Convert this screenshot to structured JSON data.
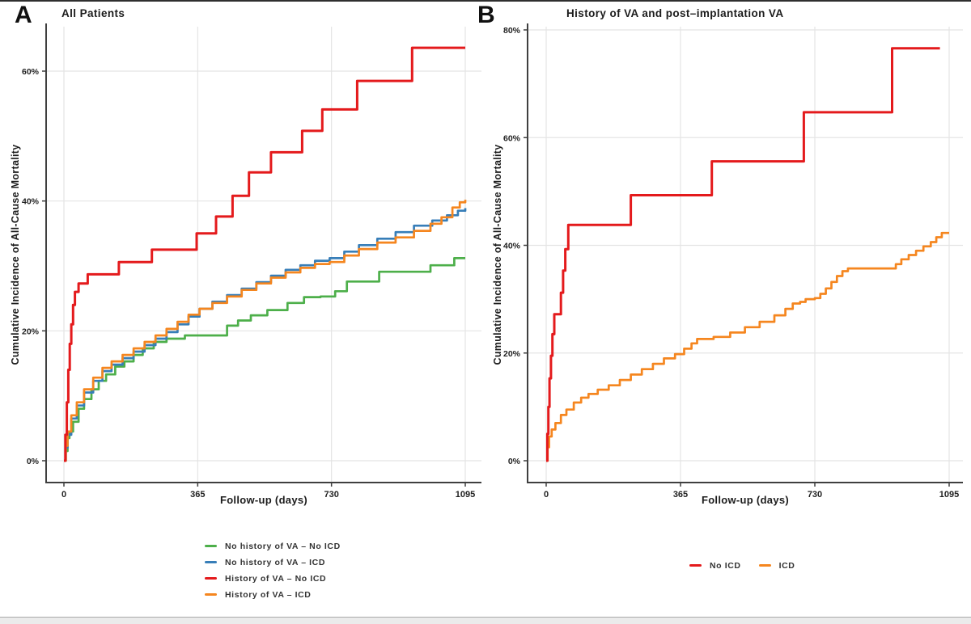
{
  "chart_data": [
    {
      "type": "step-line",
      "panel_label": "A",
      "title": "All Patients",
      "xlabel": "Follow-up (days)",
      "ylabel": "Cumulative Incidence of All-Cause Mortality",
      "xlim": [
        0,
        1095
      ],
      "ylim": [
        0,
        66
      ],
      "grid": true,
      "legend_position": "bottom-left-vertical",
      "x_ticks": [
        {
          "value": 0,
          "label": "0"
        },
        {
          "value": 365,
          "label": "365"
        },
        {
          "value": 730,
          "label": "730"
        },
        {
          "value": 1095,
          "label": "1095"
        }
      ],
      "y_ticks": [
        {
          "value": 0,
          "label": "0%"
        },
        {
          "value": 20,
          "label": "20%"
        },
        {
          "value": 40,
          "label": "40%"
        },
        {
          "value": 60,
          "label": "60%"
        }
      ],
      "series": [
        {
          "name": "No history of VA – No ICD",
          "color": "#4DAF4A",
          "points": [
            [
              0,
              0
            ],
            [
              5,
              1.5
            ],
            [
              10,
              3.5
            ],
            [
              15,
              4.5
            ],
            [
              25,
              6
            ],
            [
              40,
              8
            ],
            [
              55,
              9.5
            ],
            [
              75,
              11
            ],
            [
              95,
              12.3
            ],
            [
              115,
              13.3
            ],
            [
              140,
              14.5
            ],
            [
              165,
              15.3
            ],
            [
              190,
              16.3
            ],
            [
              215,
              17.3
            ],
            [
              245,
              18.3
            ],
            [
              280,
              18.8
            ],
            [
              330,
              19.3
            ],
            [
              445,
              20.8
            ],
            [
              475,
              21.6
            ],
            [
              510,
              22.4
            ],
            [
              555,
              23.2
            ],
            [
              610,
              24.3
            ],
            [
              655,
              25.2
            ],
            [
              700,
              25.3
            ],
            [
              740,
              26.1
            ],
            [
              772,
              27.6
            ],
            [
              860,
              29.1
            ],
            [
              1000,
              30.1
            ],
            [
              1065,
              31.2
            ],
            [
              1095,
              31.2
            ]
          ]
        },
        {
          "name": "No history of VA – ICD",
          "color": "#377EB8",
          "points": [
            [
              0,
              0
            ],
            [
              5,
              2
            ],
            [
              10,
              4
            ],
            [
              20,
              6.5
            ],
            [
              35,
              8.5
            ],
            [
              55,
              10.5
            ],
            [
              80,
              12.3
            ],
            [
              105,
              13.8
            ],
            [
              130,
              14.8
            ],
            [
              160,
              15.8
            ],
            [
              190,
              16.8
            ],
            [
              220,
              17.8
            ],
            [
              250,
              18.8
            ],
            [
              280,
              19.8
            ],
            [
              310,
              21
            ],
            [
              340,
              22.2
            ],
            [
              370,
              23.4
            ],
            [
              405,
              24.5
            ],
            [
              445,
              25.5
            ],
            [
              485,
              26.5
            ],
            [
              525,
              27.5
            ],
            [
              565,
              28.5
            ],
            [
              605,
              29.4
            ],
            [
              645,
              30.1
            ],
            [
              685,
              30.8
            ],
            [
              725,
              31.2
            ],
            [
              765,
              32.2
            ],
            [
              805,
              33.2
            ],
            [
              855,
              34.2
            ],
            [
              905,
              35.2
            ],
            [
              955,
              36.2
            ],
            [
              1005,
              37
            ],
            [
              1045,
              37.8
            ],
            [
              1075,
              38.5
            ],
            [
              1095,
              38.9
            ]
          ]
        },
        {
          "name": "History of VA – No ICD",
          "color": "#E41A1C",
          "points": [
            [
              0,
              0
            ],
            [
              4,
              4
            ],
            [
              8,
              9
            ],
            [
              12,
              14
            ],
            [
              16,
              18
            ],
            [
              20,
              21
            ],
            [
              25,
              24
            ],
            [
              30,
              26
            ],
            [
              40,
              27.3
            ],
            [
              65,
              28.7
            ],
            [
              150,
              30.6
            ],
            [
              240,
              32.5
            ],
            [
              362,
              35
            ],
            [
              415,
              37.6
            ],
            [
              460,
              40.8
            ],
            [
              505,
              44.4
            ],
            [
              565,
              47.5
            ],
            [
              650,
              50.8
            ],
            [
              705,
              54.1
            ],
            [
              800,
              58.5
            ],
            [
              950,
              63.6
            ],
            [
              1095,
              63.6
            ]
          ]
        },
        {
          "name": "History of VA – ICD",
          "color": "#F5861F",
          "points": [
            [
              0,
              0
            ],
            [
              5,
              2.3
            ],
            [
              10,
              4.5
            ],
            [
              20,
              7
            ],
            [
              35,
              9
            ],
            [
              55,
              11
            ],
            [
              80,
              12.8
            ],
            [
              105,
              14.3
            ],
            [
              130,
              15.3
            ],
            [
              160,
              16.3
            ],
            [
              190,
              17.3
            ],
            [
              220,
              18.3
            ],
            [
              250,
              19.3
            ],
            [
              280,
              20.3
            ],
            [
              310,
              21.4
            ],
            [
              340,
              22.5
            ],
            [
              370,
              23.4
            ],
            [
              405,
              24.3
            ],
            [
              445,
              25.3
            ],
            [
              485,
              26.3
            ],
            [
              525,
              27.3
            ],
            [
              565,
              28.2
            ],
            [
              605,
              29
            ],
            [
              645,
              29.7
            ],
            [
              685,
              30.3
            ],
            [
              725,
              30.6
            ],
            [
              765,
              31.6
            ],
            [
              805,
              32.6
            ],
            [
              855,
              33.6
            ],
            [
              905,
              34.4
            ],
            [
              955,
              35.4
            ],
            [
              1000,
              36.5
            ],
            [
              1030,
              37.5
            ],
            [
              1060,
              39
            ],
            [
              1080,
              39.8
            ],
            [
              1095,
              40.2
            ]
          ]
        }
      ]
    },
    {
      "type": "step-line",
      "panel_label": "B",
      "title": "History of VA and post–implantation VA",
      "xlabel": "Follow-up (days)",
      "ylabel": "Cumulative Incidence of All-Cause Mortality",
      "xlim": [
        0,
        1095
      ],
      "ylim": [
        0,
        80
      ],
      "grid": true,
      "legend_position": "bottom-center-horizontal",
      "x_ticks": [
        {
          "value": 0,
          "label": "0"
        },
        {
          "value": 365,
          "label": "365"
        },
        {
          "value": 730,
          "label": "730"
        },
        {
          "value": 1095,
          "label": "1095"
        }
      ],
      "y_ticks": [
        {
          "value": 0,
          "label": "0%"
        },
        {
          "value": 20,
          "label": "20%"
        },
        {
          "value": 40,
          "label": "40%"
        },
        {
          "value": 60,
          "label": "60%"
        },
        {
          "value": 80,
          "label": "80%"
        }
      ],
      "series": [
        {
          "name": "No ICD",
          "color": "#E41A1C",
          "points": [
            [
              0,
              0
            ],
            [
              3,
              5
            ],
            [
              6,
              10
            ],
            [
              9,
              15.3
            ],
            [
              13,
              19.5
            ],
            [
              17,
              23.5
            ],
            [
              22,
              27.2
            ],
            [
              40,
              31.2
            ],
            [
              46,
              35.3
            ],
            [
              52,
              39.3
            ],
            [
              60,
              43.8
            ],
            [
              230,
              49.3
            ],
            [
              450,
              55.6
            ],
            [
              700,
              64.7
            ],
            [
              940,
              76.6
            ],
            [
              1070,
              76.6
            ]
          ]
        },
        {
          "name": "ICD",
          "color": "#F5861F",
          "points": [
            [
              0,
              0
            ],
            [
              4,
              2.5
            ],
            [
              8,
              4.5
            ],
            [
              15,
              5.8
            ],
            [
              25,
              7
            ],
            [
              40,
              8.5
            ],
            [
              55,
              9.5
            ],
            [
              75,
              10.8
            ],
            [
              95,
              11.7
            ],
            [
              115,
              12.4
            ],
            [
              140,
              13.2
            ],
            [
              170,
              14
            ],
            [
              200,
              15
            ],
            [
              230,
              16
            ],
            [
              260,
              17
            ],
            [
              290,
              18
            ],
            [
              320,
              19
            ],
            [
              350,
              19.8
            ],
            [
              375,
              20.8
            ],
            [
              395,
              21.8
            ],
            [
              410,
              22.6
            ],
            [
              455,
              23
            ],
            [
              500,
              23.8
            ],
            [
              540,
              24.8
            ],
            [
              580,
              25.8
            ],
            [
              620,
              27
            ],
            [
              650,
              28.2
            ],
            [
              670,
              29.2
            ],
            [
              690,
              29.5
            ],
            [
              705,
              30
            ],
            [
              730,
              30.2
            ],
            [
              745,
              31
            ],
            [
              760,
              32
            ],
            [
              775,
              33.2
            ],
            [
              790,
              34.3
            ],
            [
              805,
              35.2
            ],
            [
              820,
              35.7
            ],
            [
              935,
              35.7
            ],
            [
              950,
              36.5
            ],
            [
              965,
              37.4
            ],
            [
              985,
              38.2
            ],
            [
              1005,
              39
            ],
            [
              1025,
              39.8
            ],
            [
              1045,
              40.6
            ],
            [
              1060,
              41.5
            ],
            [
              1075,
              42.3
            ],
            [
              1095,
              42.3
            ]
          ]
        }
      ]
    }
  ]
}
